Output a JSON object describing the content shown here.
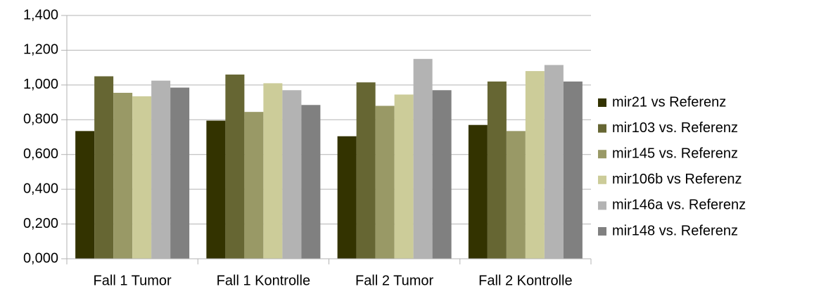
{
  "chart_data": {
    "type": "bar",
    "categories": [
      "Fall 1 Tumor",
      "Fall 1 Kontrolle",
      "Fall 2 Tumor",
      "Fall 2 Kontrolle"
    ],
    "series": [
      {
        "name": "mir21 vs Referenz",
        "color": "#333300",
        "values": [
          0.735,
          0.795,
          0.705,
          0.77
        ]
      },
      {
        "name": "mir103 vs. Referenz",
        "color": "#666633",
        "values": [
          1.05,
          1.06,
          1.015,
          1.02
        ]
      },
      {
        "name": "mir145 vs. Referenz",
        "color": "#999966",
        "values": [
          0.955,
          0.845,
          0.88,
          0.735
        ]
      },
      {
        "name": "mir106b vs Referenz",
        "color": "#cccc99",
        "values": [
          0.935,
          1.01,
          0.945,
          1.08
        ]
      },
      {
        "name": "mir146a vs. Referenz",
        "color": "#b3b3b3",
        "values": [
          1.025,
          0.97,
          1.15,
          1.115
        ]
      },
      {
        "name": "mir148 vs. Referenz",
        "color": "#808080",
        "values": [
          0.985,
          0.885,
          0.97,
          1.02
        ]
      }
    ],
    "ylim": [
      0,
      1.4
    ],
    "yticks": [
      {
        "value": 0,
        "label": "0,000"
      },
      {
        "value": 0.2,
        "label": "0,200"
      },
      {
        "value": 0.4,
        "label": "0,400"
      },
      {
        "value": 0.6,
        "label": "0,600"
      },
      {
        "value": 0.8,
        "label": "0,800"
      },
      {
        "value": 1.0,
        "label": "1,000"
      },
      {
        "value": 1.2,
        "label": "1,200"
      },
      {
        "value": 1.4,
        "label": "1,400"
      }
    ],
    "grid": true,
    "legend": "right"
  }
}
